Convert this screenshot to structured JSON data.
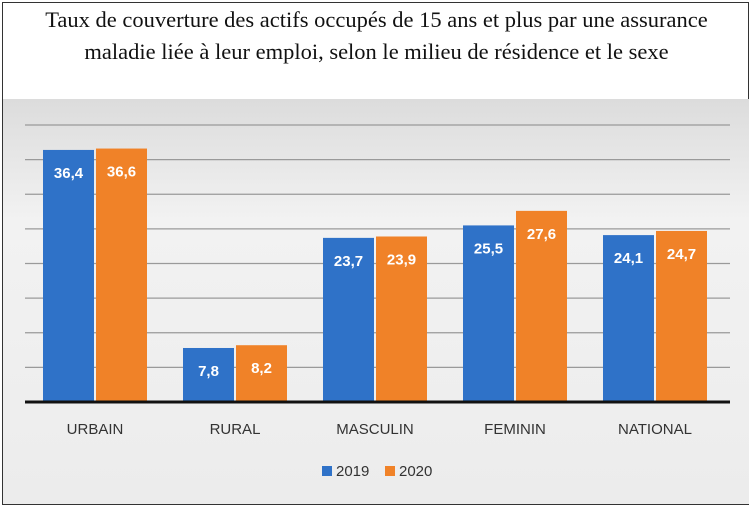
{
  "chart_data": {
    "type": "bar",
    "title": "Taux de couverture des actifs occupés de 15 ans et plus par une assurance maladie liée à leur emploi, selon le milieu de résidence et le sexe",
    "title_lines": [
      "Taux de couverture des actifs occupés de 15 ans et plus par une assurance",
      "maladie liée à leur emploi, selon le milieu de résidence et le sexe"
    ],
    "categories": [
      "URBAIN",
      "RURAL",
      "MASCULIN",
      "FEMININ",
      "NATIONAL"
    ],
    "series": [
      {
        "name": "2019",
        "values": [
          36.4,
          7.8,
          23.7,
          25.5,
          24.1
        ],
        "labels": [
          "36,4",
          "7,8",
          "23,7",
          "25,5",
          "24,1"
        ],
        "color": "#2f72c8"
      },
      {
        "name": "2020",
        "values": [
          36.6,
          8.2,
          23.9,
          27.6,
          24.7
        ],
        "labels": [
          "36,6",
          "8,2",
          "23,9",
          "27,6",
          "24,7"
        ],
        "color": "#f08228"
      }
    ],
    "ylim": [
      0,
      40
    ],
    "grid": true,
    "legend": "bottom",
    "xlabel": "",
    "ylabel": ""
  }
}
